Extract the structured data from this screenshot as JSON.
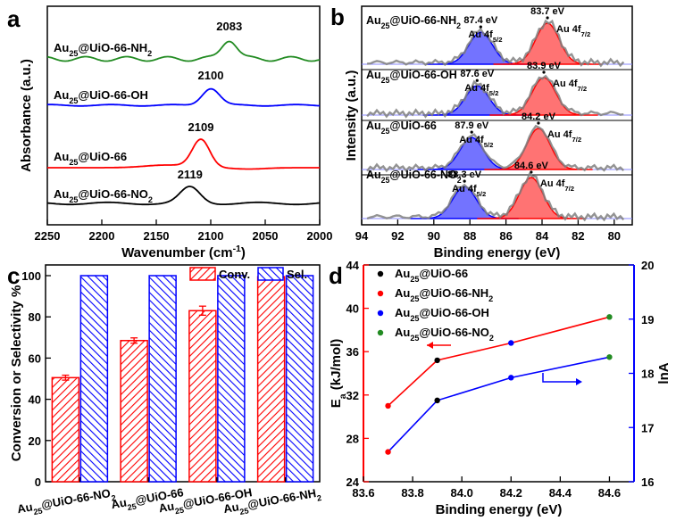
{
  "panels": {
    "a": "a",
    "b": "b",
    "c": "c",
    "d": "d"
  },
  "chart_data": [
    {
      "panel": "a",
      "type": "line",
      "xlabel": "Wavenumber (cm",
      "xlabel_sup": "-1",
      "xlabel_tail": ")",
      "ylabel": "Absorbance (a.u.)",
      "xlim": [
        2250,
        2000
      ],
      "xticks": [
        2250,
        2200,
        2150,
        2100,
        2050,
        2000
      ],
      "y_ticks_shown": false,
      "series": [
        {
          "name": "Au25@UiO-66-NH2",
          "label_base": "Au",
          "label_sub": "25",
          "label_mid": "@UiO-66-NH",
          "label_sub2": "2",
          "color": "#228B22",
          "peak_label": "2083",
          "peak_x": 2083
        },
        {
          "name": "Au25@UiO-66-OH",
          "label_base": "Au",
          "label_sub": "25",
          "label_mid": "@UiO-66-OH",
          "label_sub2": "",
          "color": "#0000FF",
          "peak_label": "2100",
          "peak_x": 2100
        },
        {
          "name": "Au25@UiO-66",
          "label_base": "Au",
          "label_sub": "25",
          "label_mid": "@UiO-66",
          "label_sub2": "",
          "color": "#FF0000",
          "peak_label": "2109",
          "peak_x": 2109
        },
        {
          "name": "Au25@UiO-66-NO2",
          "label_base": "Au",
          "label_sub": "25",
          "label_mid": "@UiO-66-NO",
          "label_sub2": "2",
          "color": "#000000",
          "peak_label": "2119",
          "peak_x": 2119
        }
      ]
    },
    {
      "panel": "b",
      "type": "line",
      "xlabel": "Binding energy (eV)",
      "ylabel": "Intensity (a.u.)",
      "xlim": [
        94,
        79
      ],
      "xticks": [
        94,
        92,
        90,
        88,
        86,
        84,
        82,
        80
      ],
      "y_ticks_shown": false,
      "series": [
        {
          "name": "Au25@UiO-66-NH2",
          "label_base": "Au",
          "label_sub": "25",
          "label_mid": "@UiO-66-NH",
          "label_sub2": "2",
          "p52": 87.4,
          "p72": 83.7,
          "p52_label": "87.4 eV",
          "p72_label": "83.7 eV"
        },
        {
          "name": "Au25@UiO-66-OH",
          "label_base": "Au",
          "label_sub": "25",
          "label_mid": "@UiO-66-OH",
          "label_sub2": "",
          "p52": 87.6,
          "p72": 83.9,
          "p52_label": "87.6 eV",
          "p72_label": "83.9 eV"
        },
        {
          "name": "Au25@UiO-66",
          "label_base": "Au",
          "label_sub": "25",
          "label_mid": "@UiO-66",
          "label_sub2": "",
          "p52": 87.9,
          "p72": 84.2,
          "p52_label": "87.9 eV",
          "p72_label": "84.2 eV"
        },
        {
          "name": "Au25@UiO-66-NO2",
          "label_base": "Au",
          "label_sub": "25",
          "label_mid": "@UiO-66-NO",
          "label_sub2": "2",
          "p52": 88.3,
          "p72": 84.6,
          "p52_label": "88.3 eV",
          "p72_label": "84.6 eV"
        }
      ],
      "orbital_52": {
        "base": "Au 4f",
        "sub": "5/2"
      },
      "orbital_72": {
        "base": "Au 4f",
        "sub": "7/2"
      },
      "colors": {
        "fit_52": "#0000FF",
        "fit_72": "#FF0000",
        "raw": "#808080"
      }
    },
    {
      "panel": "c",
      "type": "bar",
      "ylabel": "Conversion or Selectivity %",
      "ylim": [
        0,
        100
      ],
      "yticks": [
        0,
        20,
        40,
        60,
        80,
        100
      ],
      "categories": [
        {
          "base": "Au",
          "sub": "25",
          "mid": "@UiO-66-NO",
          "sub2": "2"
        },
        {
          "base": "Au",
          "sub": "25",
          "mid": "@UiO-66",
          "sub2": ""
        },
        {
          "base": "Au",
          "sub": "25",
          "mid": "@UiO-66-OH",
          "sub2": ""
        },
        {
          "base": "Au",
          "sub": "25",
          "mid": "@UiO-66-NH",
          "sub2": "2"
        }
      ],
      "series": [
        {
          "name": "Conv.",
          "color": "#FF0000",
          "values": [
            50.5,
            68.5,
            83.0,
            99.5
          ],
          "errors": [
            1.2,
            1.3,
            2.2,
            0.4
          ]
        },
        {
          "name": "Sel.",
          "color": "#0000FF",
          "values": [
            100,
            100,
            100,
            100
          ],
          "errors": [
            0,
            0,
            0,
            0
          ]
        }
      ],
      "legend": "top-right"
    },
    {
      "panel": "d",
      "type": "scatter",
      "xlabel": "Binding energy (eV)",
      "xlim": [
        83.6,
        84.7
      ],
      "xticks": [
        83.6,
        83.8,
        84.0,
        84.2,
        84.4,
        84.6
      ],
      "ylabel_left": {
        "base": "E",
        "sub": "a",
        "tail": " (kJ/mol)"
      },
      "ylabel_right": "lnA",
      "ylim_left": [
        24,
        44
      ],
      "yticks_left": [
        24,
        28,
        32,
        36,
        40,
        44
      ],
      "ylim_right": [
        16,
        20
      ],
      "yticks_right": [
        16,
        17,
        18,
        19,
        20
      ],
      "left_color": "#FF0000",
      "right_color": "#0000FF",
      "ea_values": [
        {
          "x": 83.7,
          "y": 31.0
        },
        {
          "x": 83.9,
          "y": 35.2
        },
        {
          "x": 84.2,
          "y": 36.8
        },
        {
          "x": 84.6,
          "y": 39.2
        }
      ],
      "lna_values": [
        {
          "x": 83.7,
          "y": 16.55
        },
        {
          "x": 83.9,
          "y": 17.5
        },
        {
          "x": 84.2,
          "y": 17.92
        },
        {
          "x": 84.6,
          "y": 18.3
        }
      ],
      "point_colors": [
        "#FF0000",
        "#000000",
        "#0000FF",
        "#228B22"
      ],
      "legend": [
        {
          "base": "Au",
          "sub": "25",
          "mid": "@UiO-66",
          "sub2": "",
          "color": "#000000"
        },
        {
          "base": "Au",
          "sub": "25",
          "mid": "@UiO-66-NH",
          "sub2": "2",
          "color": "#FF0000"
        },
        {
          "base": "Au",
          "sub": "25",
          "mid": "@UiO-66-OH",
          "sub2": "",
          "color": "#0000FF"
        },
        {
          "base": "Au",
          "sub": "25",
          "mid": "@UiO-66-NO",
          "sub2": "2",
          "color": "#228B22"
        }
      ]
    }
  ]
}
